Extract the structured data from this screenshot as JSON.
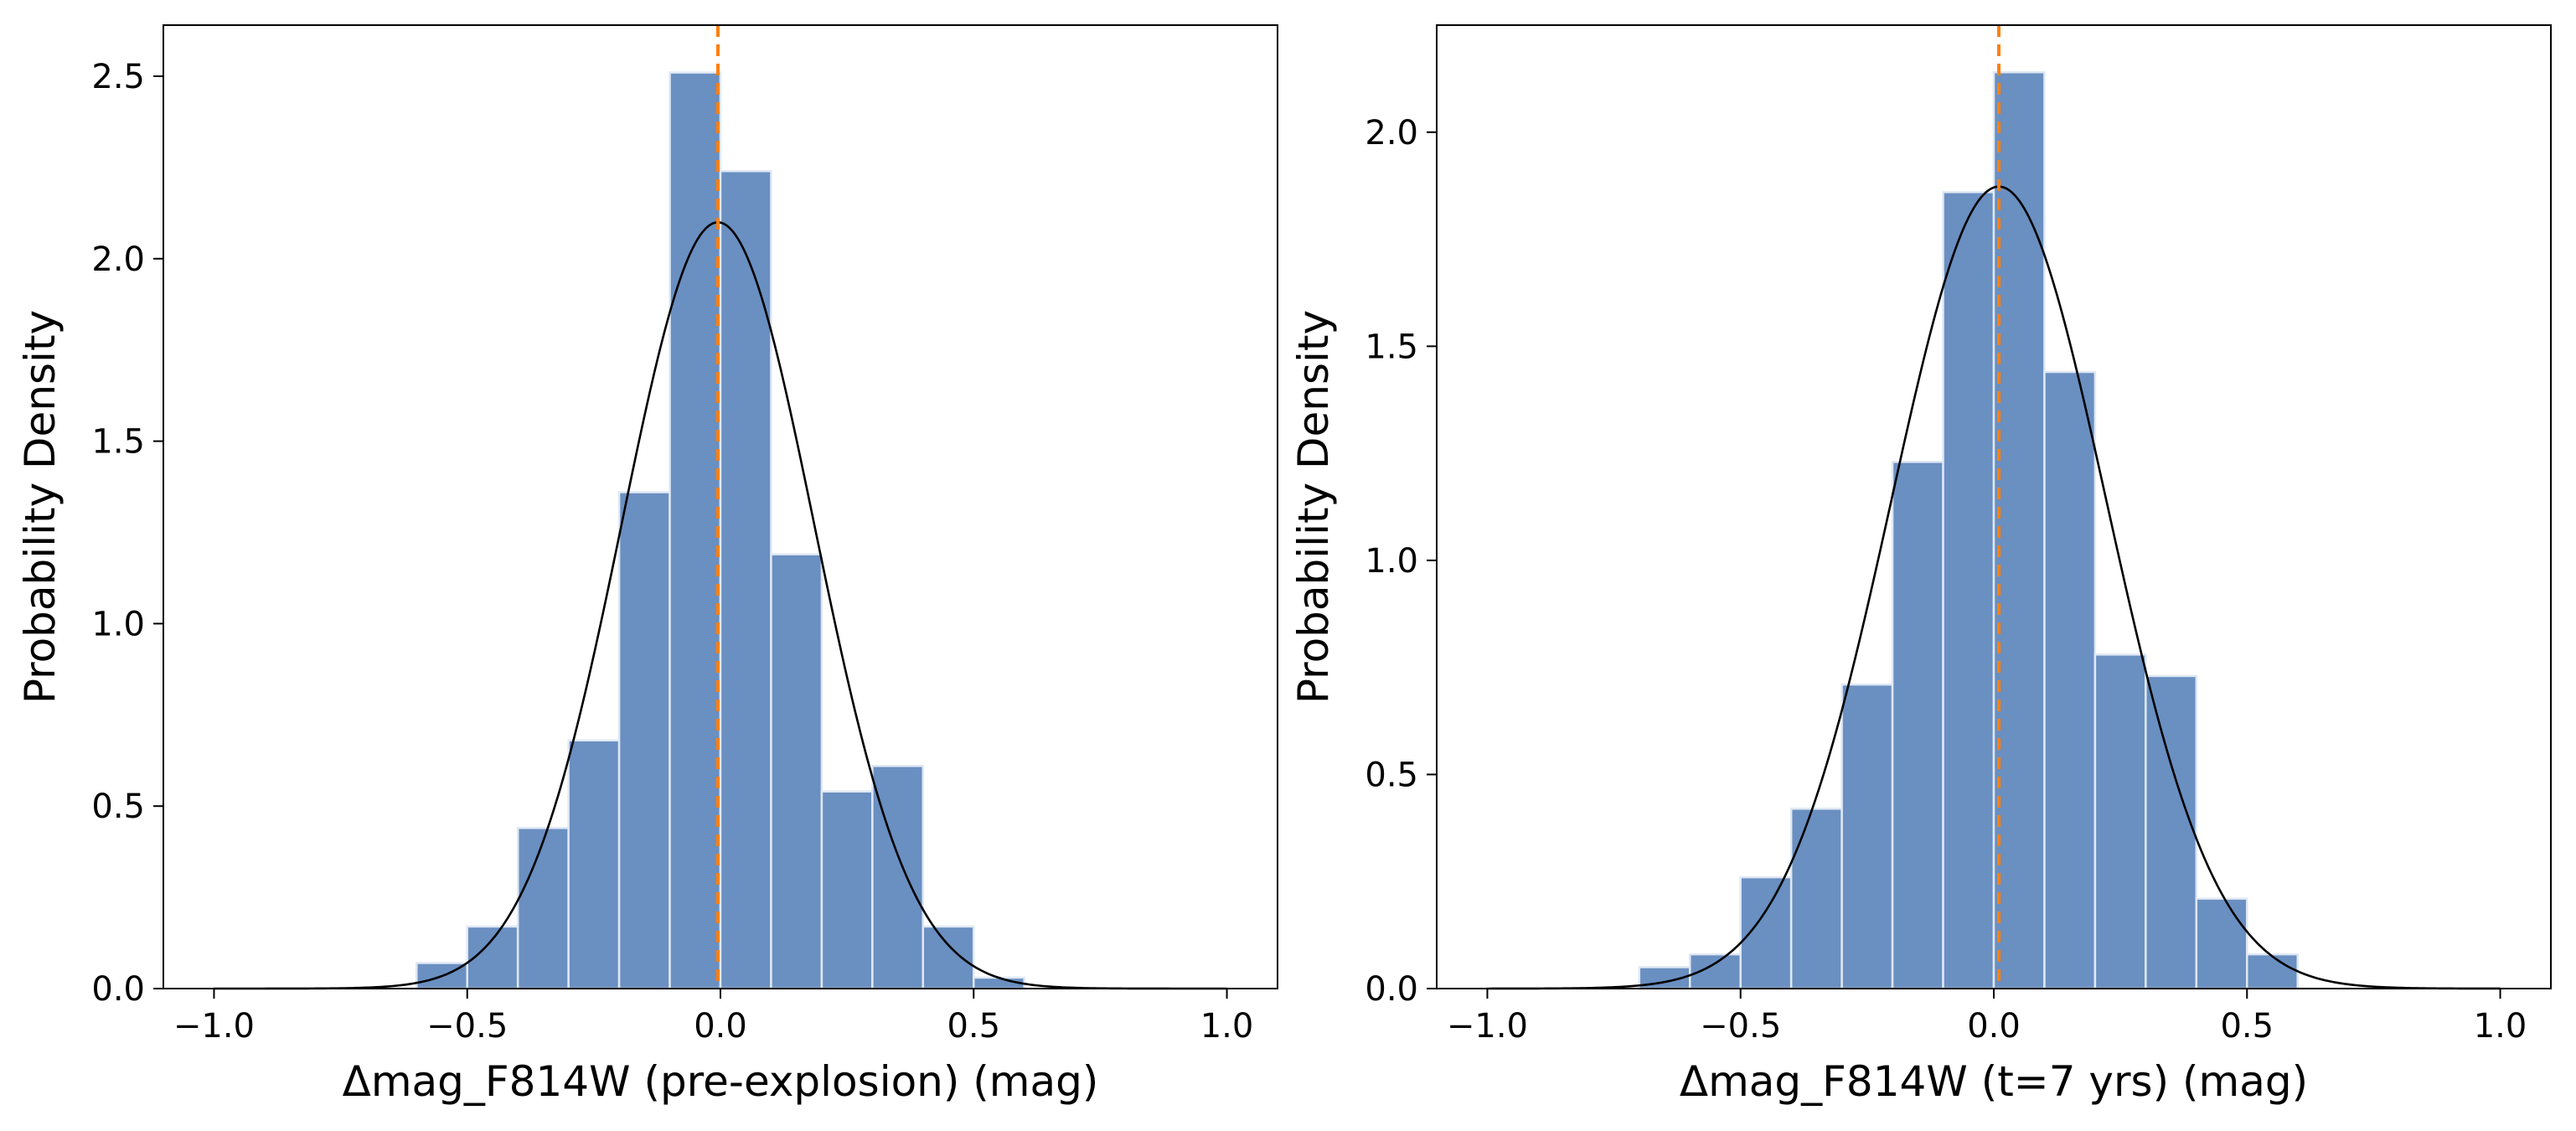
{
  "chart_data": [
    {
      "type": "bar",
      "subtype": "histogram",
      "title": "",
      "xlabel": "Δmag_F814W (pre-explosion) (mag)",
      "ylabel": "Probability Density",
      "xlim": [
        -1.1,
        1.1
      ],
      "ylim": [
        0,
        2.64
      ],
      "xticks": [
        -1.0,
        -0.5,
        0.0,
        0.5,
        1.0
      ],
      "xtick_labels": [
        "−1.0",
        "−0.5",
        "0.0",
        "0.5",
        "1.0"
      ],
      "yticks": [
        0.0,
        0.5,
        1.0,
        1.5,
        2.0,
        2.5
      ],
      "ytick_labels": [
        "0.0",
        "0.5",
        "1.0",
        "1.5",
        "2.0",
        "2.5"
      ],
      "bins": [
        {
          "x0": -0.6,
          "x1": -0.5,
          "value": 0.07
        },
        {
          "x0": -0.5,
          "x1": -0.4,
          "value": 0.17
        },
        {
          "x0": -0.4,
          "x1": -0.3,
          "value": 0.44
        },
        {
          "x0": -0.3,
          "x1": -0.2,
          "value": 0.68
        },
        {
          "x0": -0.2,
          "x1": -0.1,
          "value": 1.36
        },
        {
          "x0": -0.1,
          "x1": 0.0,
          "value": 2.51
        },
        {
          "x0": 0.0,
          "x1": 0.1,
          "value": 2.24
        },
        {
          "x0": 0.1,
          "x1": 0.2,
          "value": 1.19
        },
        {
          "x0": 0.2,
          "x1": 0.3,
          "value": 0.54
        },
        {
          "x0": 0.3,
          "x1": 0.4,
          "value": 0.61
        },
        {
          "x0": 0.4,
          "x1": 0.5,
          "value": 0.17
        },
        {
          "x0": 0.5,
          "x1": 0.6,
          "value": 0.03
        }
      ],
      "fit_curve": {
        "type": "gaussian",
        "mean": -0.005,
        "sigma": 0.19,
        "x_range": [
          -1.0,
          1.0
        ]
      },
      "vline": {
        "x": -0.005
      },
      "grid": false,
      "colors": {
        "bars": "#6a8fc1",
        "bar_edge": "#dfe8f4",
        "curve": "#000000",
        "vline": "#ff7f0e"
      }
    },
    {
      "type": "bar",
      "subtype": "histogram",
      "title": "",
      "xlabel": "Δmag_F814W (t=7 yrs) (mag)",
      "ylabel": "Probability Density",
      "xlim": [
        -1.1,
        1.1
      ],
      "ylim": [
        0,
        2.25
      ],
      "xticks": [
        -1.0,
        -0.5,
        0.0,
        0.5,
        1.0
      ],
      "xtick_labels": [
        "−1.0",
        "−0.5",
        "0.0",
        "0.5",
        "1.0"
      ],
      "yticks": [
        0.0,
        0.5,
        1.0,
        1.5,
        2.0
      ],
      "ytick_labels": [
        "0.0",
        "0.5",
        "1.0",
        "1.5",
        "2.0"
      ],
      "bins": [
        {
          "x0": -0.7,
          "x1": -0.6,
          "value": 0.05
        },
        {
          "x0": -0.6,
          "x1": -0.5,
          "value": 0.08
        },
        {
          "x0": -0.5,
          "x1": -0.4,
          "value": 0.26
        },
        {
          "x0": -0.4,
          "x1": -0.3,
          "value": 0.42
        },
        {
          "x0": -0.3,
          "x1": -0.2,
          "value": 0.71
        },
        {
          "x0": -0.2,
          "x1": -0.1,
          "value": 1.23
        },
        {
          "x0": -0.1,
          "x1": 0.0,
          "value": 1.86
        },
        {
          "x0": 0.0,
          "x1": 0.1,
          "value": 2.14
        },
        {
          "x0": 0.1,
          "x1": 0.2,
          "value": 1.44
        },
        {
          "x0": 0.2,
          "x1": 0.3,
          "value": 0.78
        },
        {
          "x0": 0.3,
          "x1": 0.4,
          "value": 0.73
        },
        {
          "x0": 0.4,
          "x1": 0.5,
          "value": 0.21
        },
        {
          "x0": 0.5,
          "x1": 0.6,
          "value": 0.08
        }
      ],
      "fit_curve": {
        "type": "gaussian",
        "mean": 0.01,
        "sigma": 0.213,
        "x_range": [
          -1.0,
          1.0
        ]
      },
      "vline": {
        "x": 0.01
      },
      "grid": false,
      "colors": {
        "bars": "#6a8fc1",
        "bar_edge": "#dfe8f4",
        "curve": "#000000",
        "vline": "#ff7f0e"
      }
    }
  ]
}
